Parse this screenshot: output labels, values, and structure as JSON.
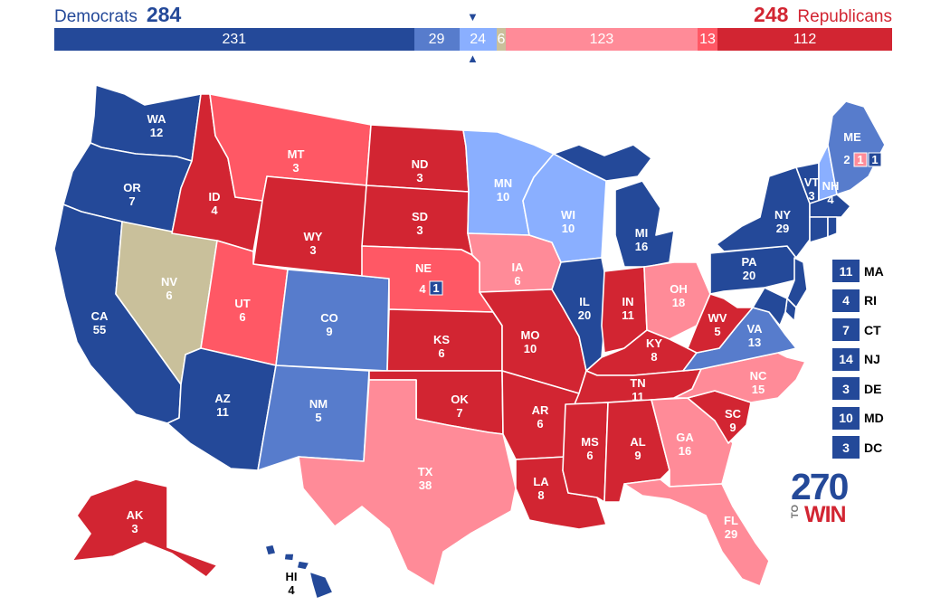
{
  "header": {
    "dem_label": "Democrats",
    "dem_total": "284",
    "rep_label": "Republicans",
    "rep_total": "248"
  },
  "colors": {
    "safe_dem": "#244999",
    "likely_dem": "#577ccc",
    "lean_dem": "#8aafff",
    "tossup": "#c9c09b",
    "lean_rep": "#ff8b98",
    "likely_rep": "#ff5865",
    "safe_rep": "#d22532"
  },
  "ev_bar": [
    {
      "key": "safe_dem",
      "value": "231"
    },
    {
      "key": "likely_dem",
      "value": "29"
    },
    {
      "key": "lean_dem",
      "value": "24"
    },
    {
      "key": "tossup",
      "value": "6"
    },
    {
      "key": "lean_rep",
      "value": "123"
    },
    {
      "key": "likely_rep",
      "value": "13"
    },
    {
      "key": "safe_rep",
      "value": "112"
    }
  ],
  "midpoint_marker": "▼",
  "midpoint_marker_bottom": "▲",
  "states": [
    {
      "abbr": "WA",
      "ev": "12",
      "rating": "safe_dem"
    },
    {
      "abbr": "OR",
      "ev": "7",
      "rating": "safe_dem"
    },
    {
      "abbr": "CA",
      "ev": "55",
      "rating": "safe_dem"
    },
    {
      "abbr": "NV",
      "ev": "6",
      "rating": "tossup"
    },
    {
      "abbr": "ID",
      "ev": "4",
      "rating": "safe_rep"
    },
    {
      "abbr": "MT",
      "ev": "3",
      "rating": "likely_rep"
    },
    {
      "abbr": "WY",
      "ev": "3",
      "rating": "safe_rep"
    },
    {
      "abbr": "UT",
      "ev": "6",
      "rating": "likely_rep"
    },
    {
      "abbr": "AZ",
      "ev": "11",
      "rating": "safe_dem"
    },
    {
      "abbr": "CO",
      "ev": "9",
      "rating": "likely_dem"
    },
    {
      "abbr": "NM",
      "ev": "5",
      "rating": "likely_dem"
    },
    {
      "abbr": "ND",
      "ev": "3",
      "rating": "safe_rep"
    },
    {
      "abbr": "SD",
      "ev": "3",
      "rating": "safe_rep"
    },
    {
      "abbr": "NE",
      "ev": "4",
      "rating": "likely_rep"
    },
    {
      "abbr": "KS",
      "ev": "6",
      "rating": "safe_rep"
    },
    {
      "abbr": "OK",
      "ev": "7",
      "rating": "safe_rep"
    },
    {
      "abbr": "TX",
      "ev": "38",
      "rating": "lean_rep"
    },
    {
      "abbr": "MN",
      "ev": "10",
      "rating": "lean_dem"
    },
    {
      "abbr": "IA",
      "ev": "6",
      "rating": "lean_rep"
    },
    {
      "abbr": "MO",
      "ev": "10",
      "rating": "safe_rep"
    },
    {
      "abbr": "AR",
      "ev": "6",
      "rating": "safe_rep"
    },
    {
      "abbr": "LA",
      "ev": "8",
      "rating": "safe_rep"
    },
    {
      "abbr": "WI",
      "ev": "10",
      "rating": "lean_dem"
    },
    {
      "abbr": "IL",
      "ev": "20",
      "rating": "safe_dem"
    },
    {
      "abbr": "MI",
      "ev": "16",
      "rating": "safe_dem"
    },
    {
      "abbr": "IN",
      "ev": "11",
      "rating": "safe_rep"
    },
    {
      "abbr": "OH",
      "ev": "18",
      "rating": "lean_rep"
    },
    {
      "abbr": "KY",
      "ev": "8",
      "rating": "safe_rep"
    },
    {
      "abbr": "TN",
      "ev": "11",
      "rating": "safe_rep"
    },
    {
      "abbr": "MS",
      "ev": "6",
      "rating": "safe_rep"
    },
    {
      "abbr": "AL",
      "ev": "9",
      "rating": "safe_rep"
    },
    {
      "abbr": "GA",
      "ev": "16",
      "rating": "lean_rep"
    },
    {
      "abbr": "FL",
      "ev": "29",
      "rating": "lean_rep"
    },
    {
      "abbr": "SC",
      "ev": "9",
      "rating": "safe_rep"
    },
    {
      "abbr": "NC",
      "ev": "15",
      "rating": "lean_rep"
    },
    {
      "abbr": "VA",
      "ev": "13",
      "rating": "likely_dem"
    },
    {
      "abbr": "WV",
      "ev": "5",
      "rating": "safe_rep"
    },
    {
      "abbr": "PA",
      "ev": "20",
      "rating": "safe_dem"
    },
    {
      "abbr": "NY",
      "ev": "29",
      "rating": "safe_dem"
    },
    {
      "abbr": "VT",
      "ev": "3",
      "rating": "safe_dem"
    },
    {
      "abbr": "NH",
      "ev": "4",
      "rating": "lean_dem"
    },
    {
      "abbr": "ME",
      "ev": "",
      "rating": "likely_dem"
    },
    {
      "abbr": "AK",
      "ev": "3",
      "rating": "safe_rep"
    },
    {
      "abbr": "HI",
      "ev": "4",
      "rating": "safe_dem"
    }
  ],
  "split_votes": {
    "me_statewide": "2",
    "me_cd1": "1",
    "me_cd2": "1",
    "ne_statewide": "4",
    "ne_cd2": "1"
  },
  "small_states": [
    {
      "abbr": "MA",
      "ev": "11",
      "rating": "safe_dem"
    },
    {
      "abbr": "RI",
      "ev": "4",
      "rating": "safe_dem"
    },
    {
      "abbr": "CT",
      "ev": "7",
      "rating": "safe_dem"
    },
    {
      "abbr": "NJ",
      "ev": "14",
      "rating": "safe_dem"
    },
    {
      "abbr": "DE",
      "ev": "3",
      "rating": "safe_dem"
    },
    {
      "abbr": "MD",
      "ev": "10",
      "rating": "safe_dem"
    },
    {
      "abbr": "DC",
      "ev": "3",
      "rating": "safe_dem"
    }
  ],
  "logo": {
    "number": "270",
    "to": "TO",
    "win": "WIN"
  }
}
